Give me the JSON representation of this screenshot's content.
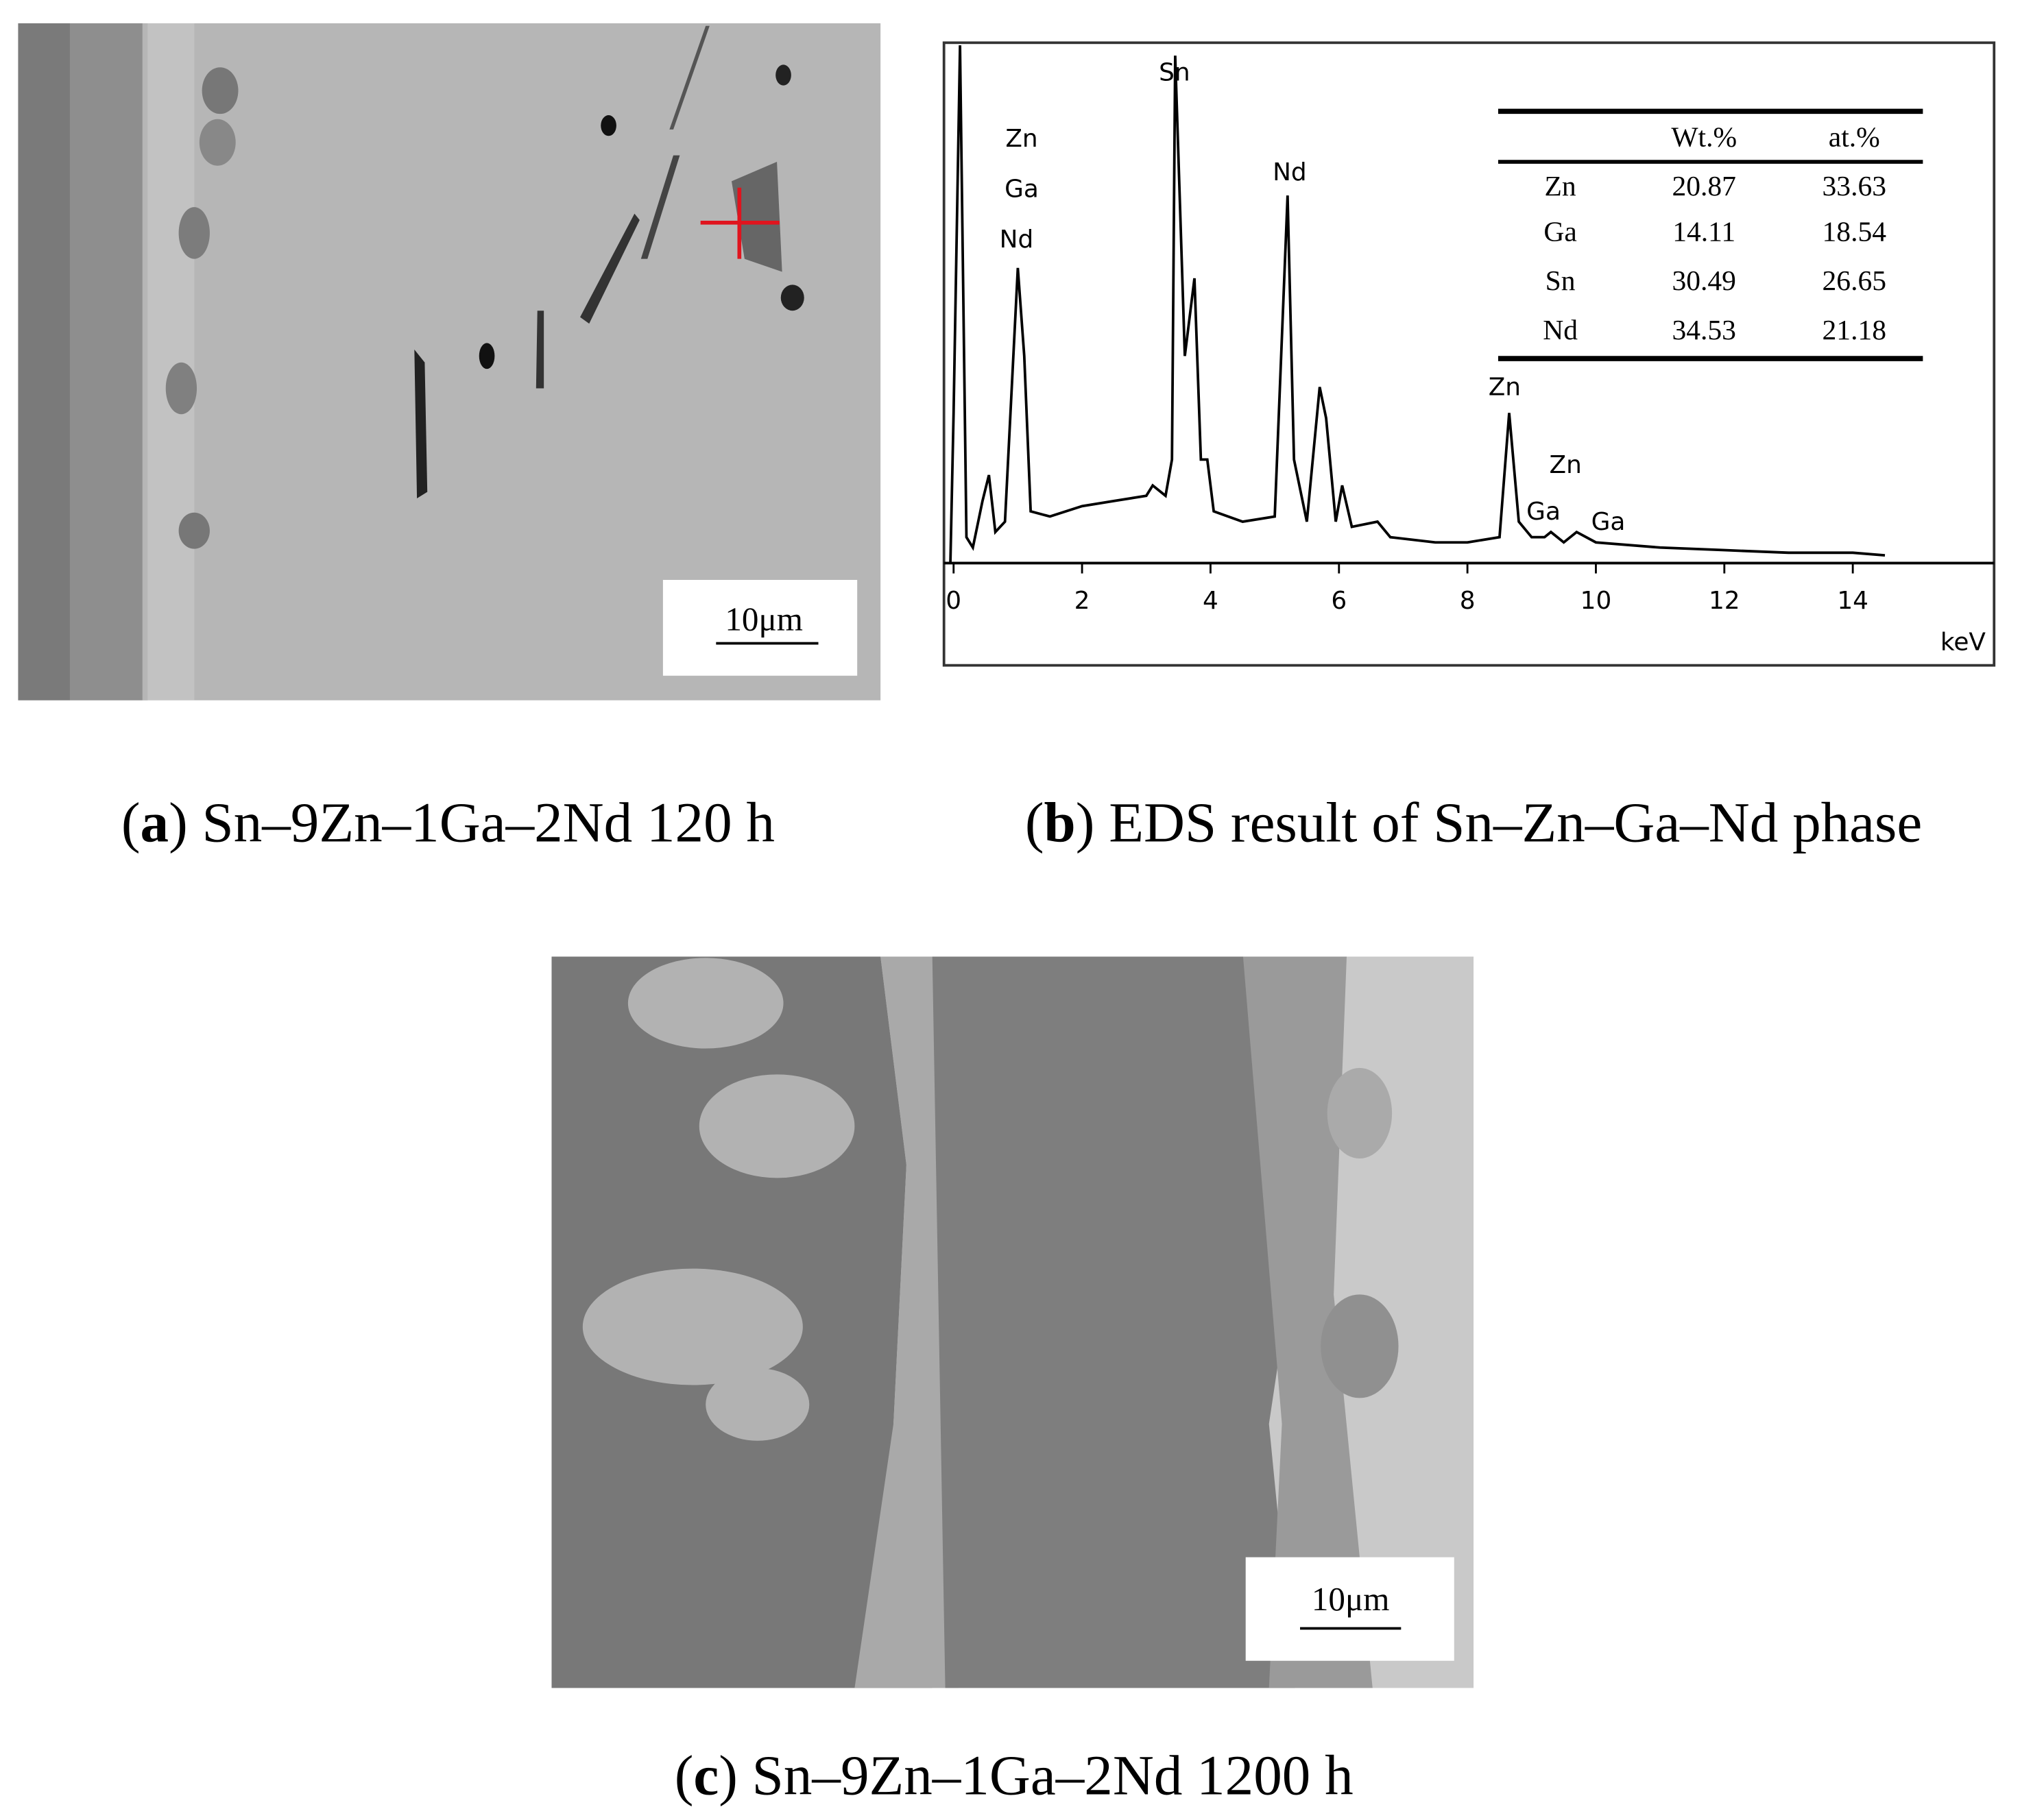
{
  "panels": [
    {
      "prefix": "(",
      "label": "a",
      "caption": ") Sn–9Zn–1Ga–2Nd 120 h",
      "scale_bar": "10μm"
    },
    {
      "prefix": "(",
      "label": "b",
      "caption": ") EDS result of Sn–Zn–Ga–Nd phase"
    },
    {
      "prefix": "(",
      "label": "c",
      "caption": ") Sn–9Zn–1Ga–2Nd 1200 h",
      "scale_bar": "10μm"
    }
  ],
  "table": {
    "headers": [
      "Wt.%",
      "at.%"
    ],
    "rows": [
      [
        "Zn",
        20.87,
        33.63
      ],
      [
        "Ga",
        14.11,
        18.54
      ],
      [
        "Sn",
        30.49,
        26.65
      ],
      [
        "Nd",
        34.53,
        21.18
      ]
    ]
  },
  "chart_data": {
    "type": "line",
    "xlabel": "keV",
    "color": "#000000",
    "xlim": [
      -0.15,
      16.2
    ],
    "ylim": [
      0,
      100
    ],
    "xticks": [
      0,
      2,
      4,
      6,
      8,
      10,
      12,
      14
    ],
    "grid": false,
    "annotations": [
      "Sn",
      "Zn",
      "Ga",
      "Nd",
      "Nd",
      "Zn",
      "Zn",
      "Ga",
      "Ga"
    ],
    "x": [
      -0.05,
      0,
      0.1,
      0.2,
      0.3,
      0.45,
      0.55,
      0.65,
      0.8,
      1.0,
      1.1,
      1.2,
      1.5,
      2.0,
      2.5,
      3.0,
      3.1,
      3.3,
      3.4,
      3.45,
      3.6,
      3.75,
      3.85,
      3.95,
      4.05,
      4.5,
      5.0,
      5.2,
      5.3,
      5.5,
      5.7,
      5.8,
      5.95,
      6.05,
      6.2,
      6.6,
      6.8,
      7.5,
      8.0,
      8.5,
      8.65,
      8.8,
      9.0,
      9.2,
      9.3,
      9.5,
      9.7,
      10,
      11,
      12,
      13,
      14,
      14.5
    ],
    "values": [
      0,
      29,
      100,
      5,
      3,
      12,
      17,
      6,
      8,
      57,
      40,
      10,
      9,
      11,
      12,
      13,
      15,
      13,
      20,
      98,
      40,
      55,
      20,
      20,
      10,
      8,
      9,
      71,
      20,
      8,
      34,
      28,
      8,
      15,
      7,
      8,
      5,
      4,
      4,
      5,
      29,
      8,
      5,
      5,
      6,
      4,
      6,
      4,
      3,
      2.5,
      2,
      2,
      1.5
    ]
  }
}
